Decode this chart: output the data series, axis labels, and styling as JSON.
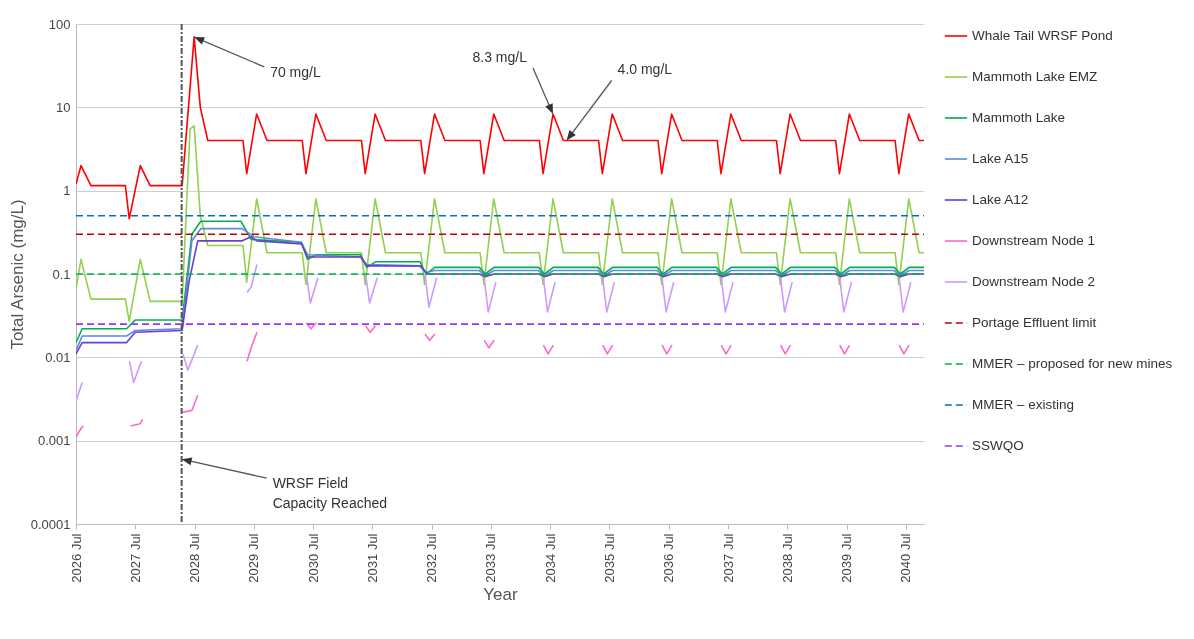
{
  "chart_data": {
    "type": "line",
    "xlabel": "Year",
    "ylabel": "Total Arsenic (mg/L)",
    "log": "y",
    "grid": "y",
    "legend": "right",
    "line_style": "solid",
    "marker": "none",
    "xlim": [
      "2026-07",
      "2040-10-20"
    ],
    "xticks": [
      {
        "value": "2026-07",
        "label": "2026 Jul"
      },
      {
        "value": "2027-07",
        "label": "2027 Jul"
      },
      {
        "value": "2028-07",
        "label": "2028 Jul"
      },
      {
        "value": "2029-07",
        "label": "2029 Jul"
      },
      {
        "value": "2030-07",
        "label": "2030 Jul"
      },
      {
        "value": "2031-07",
        "label": "2031 Jul"
      },
      {
        "value": "2032-07",
        "label": "2032 Jul"
      },
      {
        "value": "2033-07",
        "label": "2033 Jul"
      },
      {
        "value": "2034-07",
        "label": "2034 Jul"
      },
      {
        "value": "2035-07",
        "label": "2035 Jul"
      },
      {
        "value": "2036-07",
        "label": "2036 Jul"
      },
      {
        "value": "2037-07",
        "label": "2037 Jul"
      },
      {
        "value": "2038-07",
        "label": "2038 Jul"
      },
      {
        "value": "2039-07",
        "label": "2039 Jul"
      },
      {
        "value": "2040-07",
        "label": "2040 Jul"
      }
    ],
    "ylim": [
      0.0001,
      100
    ],
    "yticks": [
      0.0001,
      0.001,
      0.01,
      0.1,
      1,
      10,
      100
    ],
    "series": [
      {
        "name": "Whale Tail WRSF Pond",
        "color": "#ff0000",
        "x": [
          "2026-07-01",
          "2026-08-01",
          "2026-10-01",
          "2027-05-01",
          "2027-05-25",
          "2027-08-01",
          "2027-10-01",
          "2028-04-15",
          "2028-06-28",
          "2028-08-05",
          "2028-09-20",
          "2029-04-25",
          "2029-05-18",
          "2029-07-18",
          "2029-09-20",
          "2030-04-25",
          "2030-05-18",
          "2030-07-18",
          "2030-09-20",
          "2031-04-25",
          "2031-05-18",
          "2031-07-18",
          "2031-09-20",
          "2032-04-25",
          "2032-05-18",
          "2032-07-18",
          "2032-09-20",
          "2033-04-25",
          "2033-05-18",
          "2033-07-18",
          "2033-09-20",
          "2034-04-25",
          "2034-05-18",
          "2034-07-18",
          "2034-09-20",
          "2035-04-25",
          "2035-05-18",
          "2035-07-18",
          "2035-09-20",
          "2036-04-25",
          "2036-05-18",
          "2036-07-18",
          "2036-09-20",
          "2037-04-25",
          "2037-05-18",
          "2037-07-18",
          "2037-09-20",
          "2038-04-25",
          "2038-05-18",
          "2038-07-18",
          "2038-09-20",
          "2039-04-25",
          "2039-05-18",
          "2039-07-18",
          "2039-09-20",
          "2040-04-25",
          "2040-05-18",
          "2040-07-18",
          "2040-09-20",
          "2040-10-20"
        ],
        "values": [
          1.2,
          2.0,
          1.15,
          1.15,
          0.46,
          2.0,
          1.15,
          1.15,
          70,
          10,
          4.0,
          4.0,
          1.6,
          8.3,
          4.0,
          4.0,
          1.6,
          8.3,
          4.0,
          4.0,
          1.6,
          8.3,
          4.0,
          4.0,
          1.6,
          8.3,
          4.0,
          4.0,
          1.6,
          8.3,
          4.0,
          4.0,
          1.6,
          8.3,
          4.0,
          4.0,
          1.6,
          8.3,
          4.0,
          4.0,
          1.6,
          8.3,
          4.0,
          4.0,
          1.6,
          8.3,
          4.0,
          4.0,
          1.6,
          8.3,
          4.0,
          4.0,
          1.6,
          8.3,
          4.0,
          4.0,
          1.6,
          8.3,
          4.0,
          4.0
        ]
      },
      {
        "name": "Mammoth Lake EMZ",
        "color": "#92d050",
        "x": [
          "2026-07-01",
          "2026-08-01",
          "2026-10-01",
          "2027-05-01",
          "2027-05-25",
          "2027-08-01",
          "2027-10-01",
          "2028-04-15",
          "2028-06-03",
          "2028-06-28",
          "2028-08-05",
          "2028-09-20",
          "2029-04-25",
          "2029-05-18",
          "2029-07-18",
          "2029-09-20",
          "2030-04-25",
          "2030-05-18",
          "2030-07-18",
          "2030-09-20",
          "2031-04-25",
          "2031-05-18",
          "2031-07-18",
          "2031-09-20",
          "2032-04-25",
          "2032-05-18",
          "2032-07-18",
          "2032-09-20",
          "2033-04-25",
          "2033-05-18",
          "2033-07-18",
          "2033-09-20",
          "2034-04-25",
          "2034-05-18",
          "2034-07-18",
          "2034-09-20",
          "2035-04-25",
          "2035-05-18",
          "2035-07-18",
          "2035-09-20",
          "2036-04-25",
          "2036-05-18",
          "2036-07-18",
          "2036-09-20",
          "2037-04-25",
          "2037-05-18",
          "2037-07-18",
          "2037-09-20",
          "2038-04-25",
          "2038-05-18",
          "2038-07-18",
          "2038-09-20",
          "2039-04-25",
          "2039-05-18",
          "2039-07-18",
          "2039-09-20",
          "2040-04-25",
          "2040-05-18",
          "2040-07-18",
          "2040-09-20",
          "2040-10-20"
        ],
        "values": [
          0.066,
          0.15,
          0.05,
          0.05,
          0.027,
          0.15,
          0.047,
          0.047,
          5.5,
          6.0,
          0.5,
          0.22,
          0.22,
          0.08,
          0.8,
          0.18,
          0.18,
          0.075,
          0.8,
          0.18,
          0.18,
          0.075,
          0.8,
          0.18,
          0.18,
          0.075,
          0.8,
          0.18,
          0.18,
          0.075,
          0.8,
          0.18,
          0.18,
          0.075,
          0.8,
          0.18,
          0.18,
          0.075,
          0.8,
          0.18,
          0.18,
          0.075,
          0.8,
          0.18,
          0.18,
          0.075,
          0.8,
          0.18,
          0.18,
          0.075,
          0.8,
          0.18,
          0.18,
          0.075,
          0.8,
          0.18,
          0.18,
          0.075,
          0.8,
          0.18,
          0.18
        ]
      },
      {
        "name": "Mammoth Lake",
        "color": "#00b050",
        "x": [
          "2026-07-01",
          "2026-08-08",
          "2027-05-08",
          "2027-07-01",
          "2028-04-15",
          "2028-06-14",
          "2028-08-08",
          "2029-04-12",
          "2029-06-14",
          "2030-04-20",
          "2030-05-27",
          "2030-07-20",
          "2031-04-20",
          "2031-05-27",
          "2031-07-20",
          "2032-04-20",
          "2032-05-27",
          "2032-07-20",
          "2033-04-20",
          "2033-05-27",
          "2033-07-20",
          "2034-04-20",
          "2034-05-27",
          "2034-07-20",
          "2035-04-20",
          "2035-05-27",
          "2035-07-20",
          "2036-04-20",
          "2036-05-27",
          "2036-07-20",
          "2037-04-20",
          "2037-05-27",
          "2037-07-20",
          "2038-04-20",
          "2038-05-27",
          "2038-07-20",
          "2039-04-20",
          "2039-05-27",
          "2039-07-20",
          "2040-04-20",
          "2040-05-27",
          "2040-07-20",
          "2040-10-20"
        ],
        "values": [
          0.015,
          0.022,
          0.022,
          0.028,
          0.028,
          0.3,
          0.43,
          0.43,
          0.26,
          0.24,
          0.15,
          0.17,
          0.17,
          0.12,
          0.14,
          0.14,
          0.1,
          0.12,
          0.12,
          0.1,
          0.12,
          0.12,
          0.1,
          0.12,
          0.12,
          0.1,
          0.12,
          0.12,
          0.1,
          0.12,
          0.12,
          0.1,
          0.12,
          0.12,
          0.1,
          0.12,
          0.12,
          0.1,
          0.12,
          0.12,
          0.1,
          0.12,
          0.12
        ]
      },
      {
        "name": "Lake A15",
        "color": "#5b8bd6",
        "x": [
          "2026-07-01",
          "2026-08-08",
          "2027-05-08",
          "2027-07-01",
          "2028-04-15",
          "2028-06-14",
          "2028-08-08",
          "2029-04-20",
          "2029-07-01",
          "2030-04-20",
          "2030-05-27",
          "2031-04-20",
          "2031-05-27",
          "2032-04-20",
          "2032-05-27",
          "2032-07-20",
          "2033-04-20",
          "2033-05-27",
          "2033-07-20",
          "2034-04-20",
          "2034-05-27",
          "2034-07-20",
          "2035-04-20",
          "2035-05-27",
          "2035-07-20",
          "2036-04-20",
          "2036-05-27",
          "2036-07-20",
          "2037-04-20",
          "2037-05-27",
          "2037-07-20",
          "2038-04-20",
          "2038-05-27",
          "2038-07-20",
          "2039-04-20",
          "2039-05-27",
          "2039-07-20",
          "2040-04-20",
          "2040-05-27",
          "2040-07-20",
          "2040-10-20"
        ],
        "values": [
          0.012,
          0.018,
          0.018,
          0.021,
          0.022,
          0.25,
          0.35,
          0.35,
          0.28,
          0.24,
          0.17,
          0.16,
          0.13,
          0.125,
          0.105,
          0.11,
          0.11,
          0.095,
          0.11,
          0.11,
          0.095,
          0.11,
          0.11,
          0.095,
          0.11,
          0.11,
          0.095,
          0.11,
          0.11,
          0.095,
          0.11,
          0.11,
          0.095,
          0.11,
          0.11,
          0.095,
          0.11,
          0.11,
          0.095,
          0.11,
          0.11
        ]
      },
      {
        "name": "Lake A12",
        "color": "#6a3fd0",
        "x": [
          "2026-07-01",
          "2026-08-08",
          "2027-05-08",
          "2027-07-01",
          "2028-04-15",
          "2028-05-27",
          "2028-07-20",
          "2029-04-20",
          "2029-06-14",
          "2029-07-20",
          "2030-04-20",
          "2030-05-27",
          "2031-04-20",
          "2031-05-27",
          "2032-04-20",
          "2032-06-03",
          "2033-04-20",
          "2033-05-27",
          "2033-07-20",
          "2034-04-20",
          "2034-05-27",
          "2034-07-20",
          "2035-04-20",
          "2035-05-27",
          "2035-07-20",
          "2036-04-20",
          "2036-05-27",
          "2036-07-20",
          "2037-04-20",
          "2037-05-27",
          "2037-07-20",
          "2038-04-20",
          "2038-05-27",
          "2038-07-20",
          "2039-04-20",
          "2039-05-27",
          "2039-07-20",
          "2040-04-20",
          "2040-05-27",
          "2040-07-20",
          "2040-10-20"
        ],
        "values": [
          0.011,
          0.015,
          0.015,
          0.02,
          0.021,
          0.08,
          0.25,
          0.25,
          0.28,
          0.25,
          0.23,
          0.16,
          0.16,
          0.125,
          0.125,
          0.1,
          0.1,
          0.093,
          0.1,
          0.1,
          0.093,
          0.1,
          0.1,
          0.093,
          0.1,
          0.1,
          0.093,
          0.1,
          0.1,
          0.093,
          0.1,
          0.1,
          0.093,
          0.1,
          0.1,
          0.093,
          0.1,
          0.1,
          0.093,
          0.1,
          0.1
        ]
      },
      {
        "name": "Downstream Node 1",
        "color": "#ff66cc",
        "x": [
          "2026-07-01",
          "2026-07-31",
          "2026-08-15",
          "2026-10-20",
          "2027-06-03",
          "2027-07-31",
          "2027-08-15",
          "2027-10-20",
          "2028-04-20",
          "2028-06-14",
          "2028-07-20",
          "2028-10-20",
          "2029-05-20",
          "2029-06-14",
          "2029-07-20",
          "2029-10-20",
          "2030-05-20",
          "2030-06-18",
          "2030-07-20",
          "2030-10-20",
          "2031-05-20",
          "2031-06-18",
          "2031-07-20",
          "2031-10-20",
          "2032-05-20",
          "2032-06-18",
          "2032-07-20",
          "2032-10-20",
          "2033-05-20",
          "2033-06-18",
          "2033-07-20",
          "2033-10-20",
          "2034-05-20",
          "2034-06-18",
          "2034-07-20",
          "2034-10-20",
          "2035-05-20",
          "2035-06-18",
          "2035-07-20",
          "2035-10-20",
          "2036-05-20",
          "2036-06-18",
          "2036-07-20",
          "2036-10-20",
          "2037-05-20",
          "2037-06-18",
          "2037-07-20",
          "2037-10-20",
          "2038-05-20",
          "2038-06-18",
          "2038-07-20",
          "2038-10-20",
          "2039-05-20",
          "2039-06-18",
          "2039-07-20",
          "2039-10-20",
          "2040-05-20",
          "2040-06-18",
          "2040-07-20"
        ],
        "values": [
          0.0011,
          0.0014,
          0.0015,
          null,
          0.0015,
          0.0016,
          0.0018,
          null,
          0.0022,
          0.0023,
          0.0035,
          null,
          0.009,
          0.013,
          0.02,
          null,
          0.026,
          0.022,
          0.026,
          null,
          0.024,
          0.02,
          0.024,
          null,
          0.019,
          0.016,
          0.019,
          null,
          0.016,
          0.013,
          0.016,
          null,
          0.014,
          0.011,
          0.014,
          null,
          0.014,
          0.011,
          0.014,
          null,
          0.014,
          0.011,
          0.014,
          null,
          0.014,
          0.011,
          0.014,
          null,
          0.014,
          0.011,
          0.014,
          null,
          0.014,
          0.011,
          0.014,
          null,
          0.014,
          0.011,
          0.014
        ]
      },
      {
        "name": "Downstream Node 2",
        "color": "#cc99ff",
        "x": [
          "2026-07-01",
          "2026-08-08",
          "2026-10-20",
          "2027-05-27",
          "2027-06-21",
          "2027-08-08",
          "2027-10-20",
          "2028-04-20",
          "2028-05-20",
          "2028-07-20",
          "2028-10-20",
          "2029-05-20",
          "2029-06-14",
          "2029-07-20",
          "2029-10-20",
          "2030-05-20",
          "2030-06-14",
          "2030-07-31",
          "2030-10-20",
          "2031-05-20",
          "2031-06-14",
          "2031-07-31",
          "2031-10-20",
          "2032-05-20",
          "2032-06-14",
          "2032-07-31",
          "2032-10-20",
          "2033-05-20",
          "2033-06-14",
          "2033-07-31",
          "2033-10-20",
          "2034-05-20",
          "2034-06-14",
          "2034-07-31",
          "2034-10-20",
          "2035-05-20",
          "2035-06-14",
          "2035-07-31",
          "2035-10-20",
          "2036-05-20",
          "2036-06-14",
          "2036-07-31",
          "2036-10-20",
          "2037-05-20",
          "2037-06-14",
          "2037-07-31",
          "2037-10-20",
          "2038-05-20",
          "2038-06-14",
          "2038-07-31",
          "2038-10-20",
          "2039-05-20",
          "2039-06-14",
          "2039-07-31",
          "2039-10-20",
          "2040-05-20",
          "2040-06-14",
          "2040-07-31"
        ],
        "values": [
          0.003,
          0.005,
          null,
          0.009,
          0.005,
          0.009,
          null,
          0.011,
          0.007,
          0.014,
          null,
          0.06,
          0.07,
          0.13,
          null,
          0.1,
          0.045,
          0.09,
          null,
          0.1,
          0.045,
          0.09,
          null,
          0.1,
          0.04,
          0.09,
          null,
          0.09,
          0.035,
          0.08,
          null,
          0.09,
          0.035,
          0.08,
          null,
          0.09,
          0.035,
          0.08,
          null,
          0.09,
          0.035,
          0.08,
          null,
          0.09,
          0.035,
          0.08,
          null,
          0.09,
          0.035,
          0.08,
          null,
          0.09,
          0.035,
          0.08,
          null,
          0.09,
          0.035,
          0.08
        ]
      }
    ],
    "ref_lines": [
      {
        "axis": "y",
        "value": 0.3,
        "label": "Portage Effluent limit",
        "color": "#c00000",
        "line_style": "dashed"
      },
      {
        "axis": "y",
        "value": 0.1,
        "label": "MMER – proposed for new mines",
        "color": "#00b050",
        "line_style": "dashed"
      },
      {
        "axis": "y",
        "value": 0.5,
        "label": "MMER – existing",
        "color": "#0070c0",
        "line_style": "dashed"
      },
      {
        "axis": "y",
        "value": 0.025,
        "label": "SSWQO",
        "color": "#9933ff",
        "line_style": "dashed"
      },
      {
        "axis": "x",
        "value": "2028-04-12",
        "color": "#555555",
        "line_style": "dotted"
      }
    ],
    "annotations": [
      {
        "text": "70 mg/L",
        "x": "2028-06-28",
        "y": 70
      },
      {
        "text": "8.3 mg/L",
        "x": "2034-07-18",
        "y": 8.3
      },
      {
        "text": "4.0 mg/L",
        "x": "2034-10-10",
        "y": 4.0
      },
      {
        "text": "WRSF Field Capacity Reached",
        "x": "2028-04-12",
        "y": 0.0006
      }
    ]
  }
}
